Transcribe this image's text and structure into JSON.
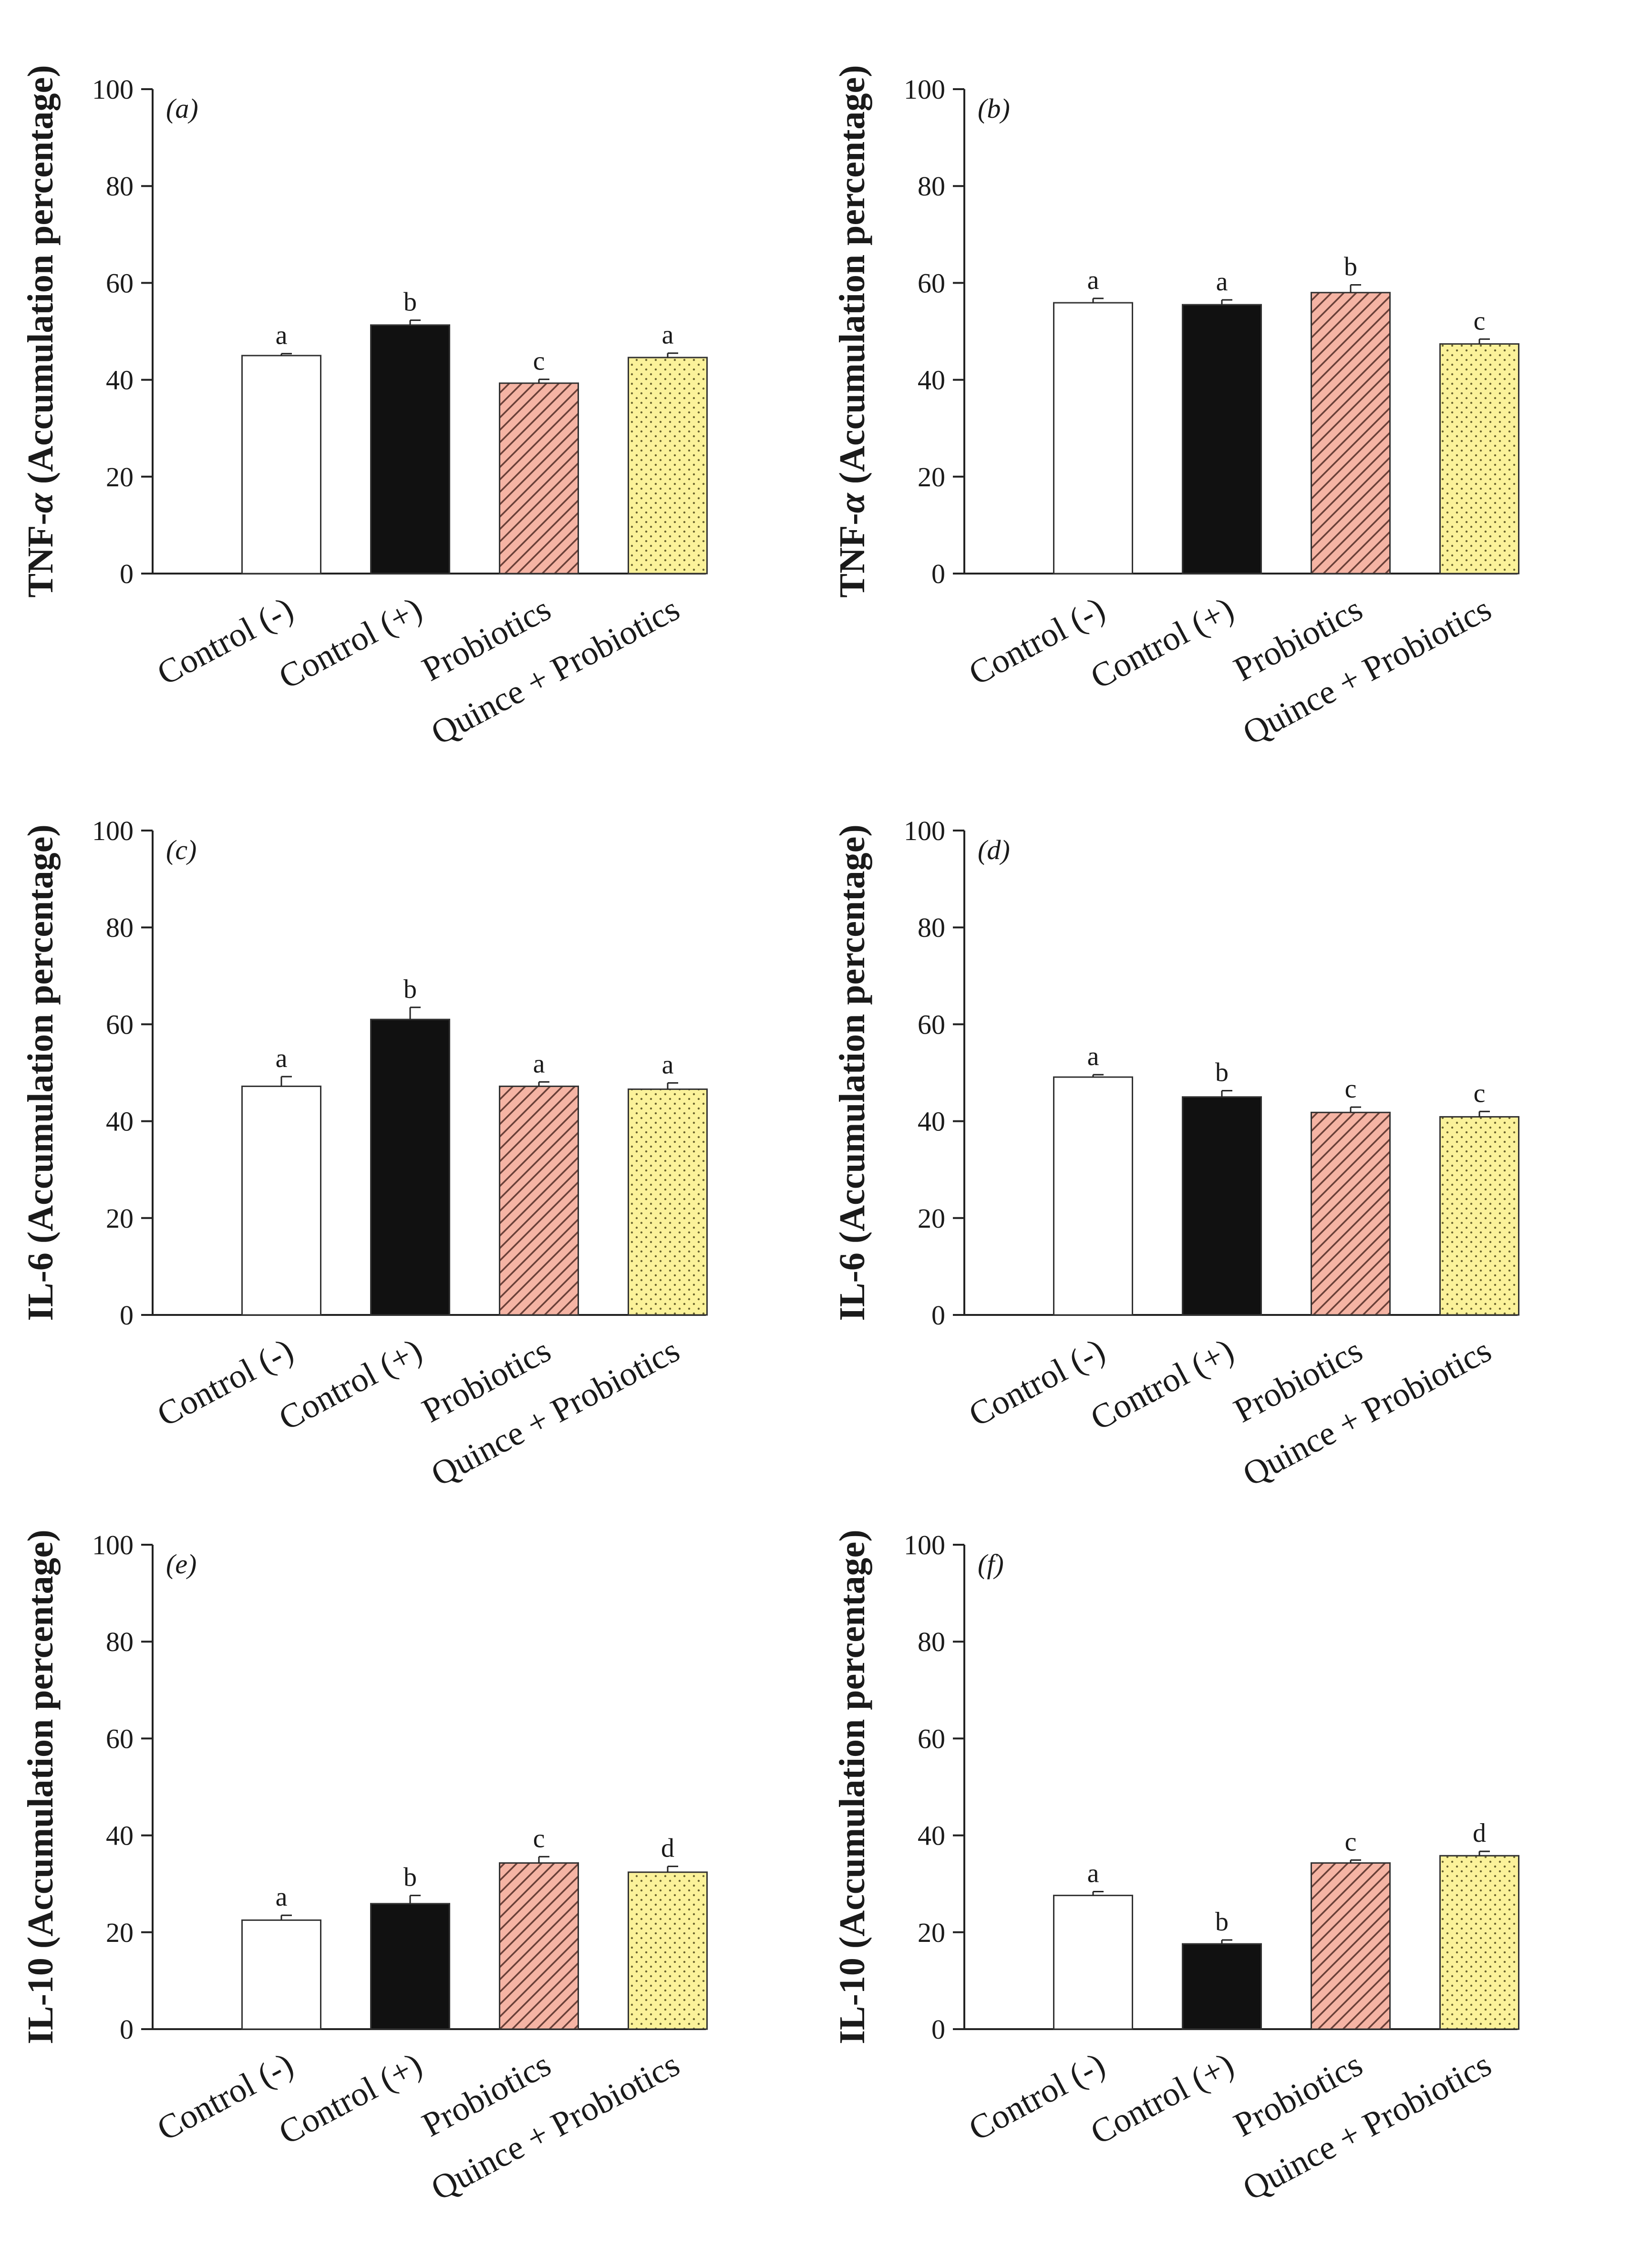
{
  "fill_colors": {
    "Control (-)": "#ffffff",
    "Control (+)": "#111111",
    "Probiotics": "#f5b4a4",
    "Quince + Probiotics": "#fbf29a"
  },
  "fill_patterns": {
    "Control (-)": "none",
    "Control (+)": "solid",
    "Probiotics": "diagonal-hatch",
    "Quince + Probiotics": "dots"
  },
  "chart_data": [
    {
      "type": "bar",
      "panel": "(a)",
      "ylabel_main": "TNF-",
      "ylabel_italic": "α",
      "ylabel_rest": " (Accumulation percentage)",
      "ylim": [
        0,
        100
      ],
      "yticks": [
        "0",
        "20",
        "40",
        "60",
        "80",
        "100"
      ],
      "categories": [
        "Control (-)",
        "Control (+)",
        "Probiotics",
        "Quince + Probiotics"
      ],
      "values": [
        45,
        51.3,
        39.3,
        44.6
      ],
      "errors": [
        0.4,
        1.0,
        0.8,
        0.9
      ],
      "letters": [
        "a",
        "b",
        "c",
        "a"
      ]
    },
    {
      "type": "bar",
      "panel": "(b)",
      "ylabel_main": "TNF-",
      "ylabel_italic": "α",
      "ylabel_rest": " (Accumulation percentage)",
      "ylim": [
        0,
        100
      ],
      "yticks": [
        "0",
        "20",
        "40",
        "60",
        "80",
        "100"
      ],
      "categories": [
        "Control (-)",
        "Control (+)",
        "Probiotics",
        "Quince + Probiotics"
      ],
      "values": [
        55.9,
        55.5,
        58,
        47.4
      ],
      "errors": [
        0.9,
        1.0,
        1.6,
        1.0
      ],
      "letters": [
        "a",
        "a",
        "b",
        "c"
      ]
    },
    {
      "type": "bar",
      "panel": "(c)",
      "ylabel_main": "IL-6",
      "ylabel_italic": "",
      "ylabel_rest": " (Accumulation percentage)",
      "ylim": [
        0,
        100
      ],
      "yticks": [
        "0",
        "20",
        "40",
        "60",
        "80",
        "100"
      ],
      "categories": [
        "Control (-)",
        "Control (+)",
        "Probiotics",
        "Quince + Probiotics"
      ],
      "values": [
        47.2,
        61,
        47.2,
        46.6
      ],
      "errors": [
        2.0,
        2.5,
        0.9,
        1.3
      ],
      "letters": [
        "a",
        "b",
        "a",
        "a"
      ]
    },
    {
      "type": "bar",
      "panel": "(d)",
      "ylabel_main": "IL-6",
      "ylabel_italic": "",
      "ylabel_rest": " (Accumulation percentage)",
      "ylim": [
        0,
        100
      ],
      "yticks": [
        "0",
        "20",
        "40",
        "60",
        "80",
        "100"
      ],
      "categories": [
        "Control (-)",
        "Control (+)",
        "Probiotics",
        "Quince + Probiotics"
      ],
      "values": [
        49.1,
        45,
        41.8,
        40.9
      ],
      "errors": [
        0.5,
        1.3,
        1.1,
        1.1
      ],
      "letters": [
        "a",
        "b",
        "c",
        "c"
      ]
    },
    {
      "type": "bar",
      "panel": "(e)",
      "ylabel_main": "IL-10",
      "ylabel_italic": "",
      "ylabel_rest": " (Accumulation percentage)",
      "ylim": [
        0,
        100
      ],
      "yticks": [
        "0",
        "20",
        "40",
        "60",
        "80",
        "100"
      ],
      "categories": [
        "Control (-)",
        "Control (+)",
        "Probiotics",
        "Quince + Probiotics"
      ],
      "values": [
        22.5,
        25.9,
        34.3,
        32.4
      ],
      "errors": [
        1.0,
        1.7,
        1.3,
        1.2
      ],
      "letters": [
        "a",
        "b",
        "c",
        "d"
      ]
    },
    {
      "type": "bar",
      "panel": "(f)",
      "ylabel_main": "IL-10",
      "ylabel_italic": "",
      "ylabel_rest": " (Accumulation percentage)",
      "ylim": [
        0,
        100
      ],
      "yticks": [
        "0",
        "20",
        "40",
        "60",
        "80",
        "100"
      ],
      "categories": [
        "Control (-)",
        "Control (+)",
        "Probiotics",
        "Quince + Probiotics"
      ],
      "values": [
        27.6,
        17.6,
        34.3,
        35.8
      ],
      "errors": [
        0.8,
        0.8,
        0.6,
        0.9
      ],
      "letters": [
        "a",
        "b",
        "c",
        "d"
      ]
    }
  ]
}
